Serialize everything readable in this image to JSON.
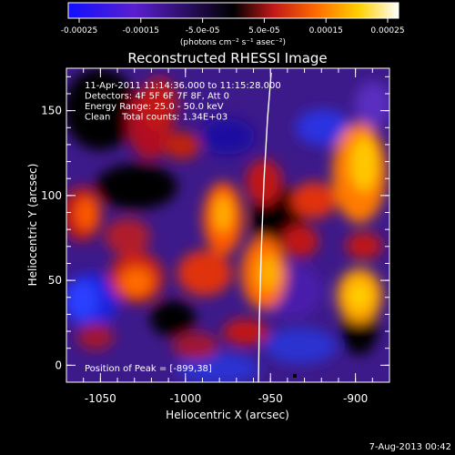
{
  "colorbar": {
    "tick_labels": [
      "-0.00025",
      "-0.00015",
      "-5.0e-05",
      "5.0e-05",
      "0.00015",
      "0.00025"
    ],
    "unit_label": "(photons cm⁻² s⁻¹ asec⁻²)",
    "colors": [
      "#1010ff",
      "#5a1fd0",
      "#000000",
      "#c01818",
      "#ff6a00",
      "#ffd000",
      "#ffffff"
    ]
  },
  "plot": {
    "title": "Reconstructed RHESSI Image",
    "info_lines": [
      "11-Apr-2011 11:14:36.000 to 11:15:28.000",
      "Detectors: 4F 5F 6F 7F 8F, Att 0",
      "Energy Range: 25.0 - 50.0 keV",
      "Clean    Total counts: 1.34E+03"
    ],
    "peak_label": "Position of Peak = [-899,38]",
    "xlabel": "Heliocentric X (arcsec)",
    "ylabel": "Heliocentric Y (arcsec)",
    "xticks": [
      "-1050",
      "-1000",
      "-950",
      "-900"
    ],
    "yticks": [
      "0",
      "50",
      "100",
      "150"
    ]
  },
  "footer": {
    "date": "7-Aug-2013 00:42"
  }
}
